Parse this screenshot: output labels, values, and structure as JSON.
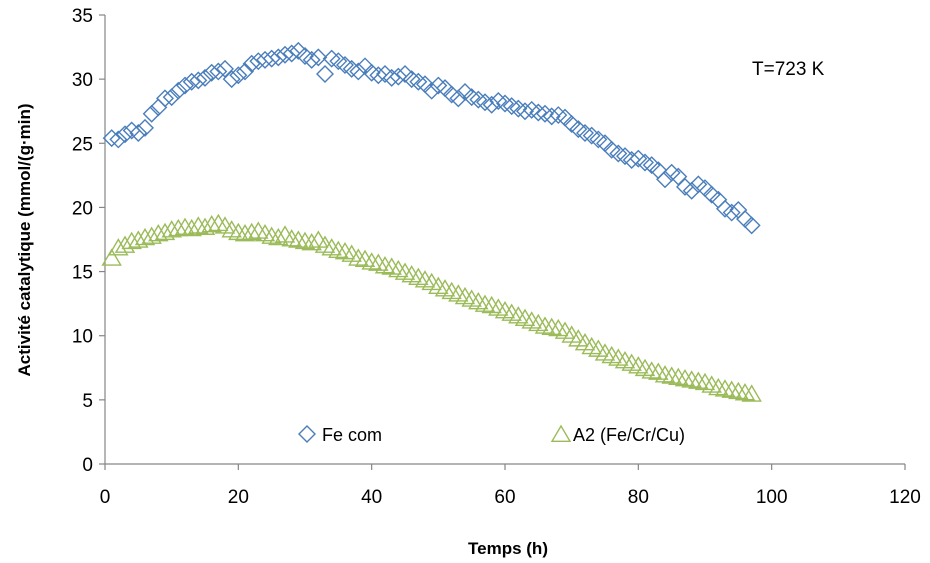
{
  "chart_data": {
    "type": "scatter",
    "xlabel": "Temps (h)",
    "ylabel": "Activité catalytique  (mmol/(g·min)",
    "xlim": [
      0,
      120
    ],
    "ylim": [
      0,
      35
    ],
    "xticks": [
      0,
      20,
      40,
      60,
      80,
      100,
      120
    ],
    "yticks": [
      0,
      5,
      10,
      15,
      20,
      25,
      30,
      35
    ],
    "grid": false,
    "legend_position": "bottom-inside",
    "annotation": "T=723 K",
    "series": [
      {
        "name": "Fe com",
        "marker": "diamond",
        "color": "#4A7EBB",
        "x": [
          1,
          2,
          3,
          4,
          5,
          6,
          7,
          8,
          9,
          10,
          11,
          12,
          13,
          14,
          15,
          16,
          17,
          18,
          19,
          20,
          21,
          22,
          23,
          24,
          25,
          26,
          27,
          28,
          29,
          30,
          31,
          32,
          33,
          34,
          35,
          36,
          37,
          38,
          39,
          40,
          41,
          42,
          43,
          44,
          45,
          46,
          47,
          48,
          49,
          50,
          51,
          52,
          53,
          54,
          55,
          56,
          57,
          58,
          59,
          60,
          61,
          62,
          63,
          64,
          65,
          66,
          67,
          68,
          69,
          70,
          71,
          72,
          73,
          74,
          75,
          76,
          77,
          78,
          79,
          80,
          81,
          82,
          83,
          84,
          85,
          86,
          87,
          88,
          89,
          90,
          91,
          92,
          93,
          94,
          95,
          96,
          97
        ],
        "y": [
          25.4,
          25.3,
          25.7,
          26.0,
          25.8,
          26.2,
          27.3,
          27.8,
          28.5,
          28.6,
          29.1,
          29.5,
          29.8,
          29.9,
          30.1,
          30.5,
          30.6,
          30.8,
          30.0,
          30.3,
          30.6,
          31.2,
          31.4,
          31.5,
          31.6,
          31.7,
          31.9,
          32.0,
          32.2,
          31.8,
          31.5,
          31.7,
          30.4,
          31.6,
          31.4,
          31.1,
          30.8,
          30.6,
          31.0,
          30.5,
          30.3,
          30.4,
          30.1,
          30.2,
          30.4,
          30.0,
          29.8,
          29.6,
          29.1,
          29.5,
          29.3,
          28.8,
          28.5,
          29.0,
          28.6,
          28.4,
          28.2,
          28.0,
          28.3,
          28.1,
          27.9,
          27.7,
          27.5,
          27.6,
          27.4,
          27.3,
          27.1,
          27.2,
          27.0,
          26.5,
          26.1,
          25.8,
          25.6,
          25.3,
          25.0,
          24.5,
          24.2,
          24.0,
          23.7,
          23.8,
          23.5,
          23.3,
          22.9,
          22.2,
          22.7,
          22.4,
          21.6,
          21.3,
          21.8,
          21.5,
          21.0,
          20.6,
          19.9,
          19.6,
          19.8,
          19.1,
          18.6
        ]
      },
      {
        "name": "A2 (Fe/Cr/Cu)",
        "marker": "triangle",
        "color": "#9BBB59",
        "x": [
          1,
          2,
          3,
          4,
          5,
          6,
          7,
          8,
          9,
          10,
          11,
          12,
          13,
          14,
          15,
          16,
          17,
          18,
          19,
          20,
          21,
          22,
          23,
          24,
          25,
          26,
          27,
          28,
          29,
          30,
          31,
          32,
          33,
          34,
          35,
          36,
          37,
          38,
          39,
          40,
          41,
          42,
          43,
          44,
          45,
          46,
          47,
          48,
          49,
          50,
          51,
          52,
          53,
          54,
          55,
          56,
          57,
          58,
          59,
          60,
          61,
          62,
          63,
          64,
          65,
          66,
          67,
          68,
          69,
          70,
          71,
          72,
          73,
          74,
          75,
          76,
          77,
          78,
          79,
          80,
          81,
          82,
          83,
          84,
          85,
          86,
          87,
          88,
          89,
          90,
          91,
          92,
          93,
          94,
          95,
          96,
          97
        ],
        "y": [
          16.0,
          16.8,
          17.0,
          17.3,
          17.4,
          17.6,
          17.7,
          17.9,
          18.0,
          18.2,
          18.3,
          18.4,
          18.3,
          18.5,
          18.4,
          18.6,
          18.7,
          18.5,
          18.2,
          18.0,
          17.9,
          18.0,
          18.1,
          17.9,
          17.7,
          17.6,
          17.8,
          17.5,
          17.4,
          17.3,
          17.2,
          17.4,
          17.0,
          16.8,
          16.6,
          16.5,
          16.3,
          16.0,
          15.9,
          15.7,
          15.6,
          15.4,
          15.3,
          15.1,
          14.9,
          14.7,
          14.5,
          14.3,
          14.1,
          13.8,
          13.6,
          13.4,
          13.2,
          13.0,
          12.8,
          12.6,
          12.4,
          12.3,
          12.1,
          11.9,
          11.7,
          11.5,
          11.3,
          11.1,
          10.9,
          10.7,
          10.6,
          10.5,
          10.3,
          10.0,
          9.7,
          9.4,
          9.1,
          8.9,
          8.6,
          8.4,
          8.2,
          8.0,
          7.8,
          7.6,
          7.4,
          7.2,
          7.1,
          6.9,
          6.8,
          6.7,
          6.6,
          6.5,
          6.4,
          6.3,
          6.1,
          5.9,
          5.8,
          5.7,
          5.6,
          5.5,
          5.4
        ]
      }
    ]
  }
}
